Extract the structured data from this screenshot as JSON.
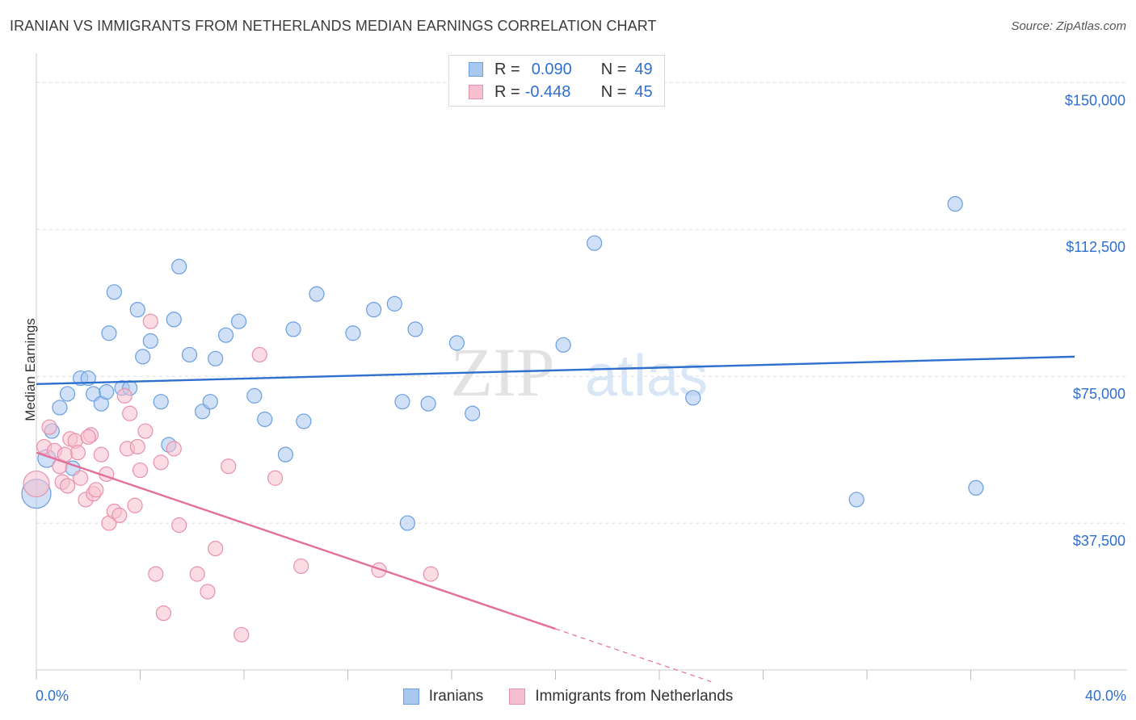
{
  "title": "IRANIAN VS IMMIGRANTS FROM NETHERLANDS MEDIAN EARNINGS CORRELATION CHART",
  "source": "Source: ZipAtlas.com",
  "watermark": {
    "part1": "ZIP",
    "part2": "atlas"
  },
  "legend": [
    {
      "r_label": "R =",
      "r_value": "0.090",
      "n_label": "N =",
      "n_value": "49",
      "color": "#a9c8f0",
      "border": "#6a9ee0"
    },
    {
      "r_label": "R =",
      "r_value": "-0.448",
      "n_label": "N =",
      "n_value": "45",
      "color": "#f7c0d0",
      "border": "#e890aa"
    }
  ],
  "bottom_legend": [
    "Iranians",
    "Immigrants from Netherlands"
  ],
  "x_axis": {
    "min_label": "0.0%",
    "max_label": "40.0%"
  },
  "chart_data": {
    "type": "scatter",
    "xlabel": "",
    "ylabel": "Median Earnings",
    "xlim": [
      0,
      40
    ],
    "ylim": [
      0,
      155000
    ],
    "y_ticks": [
      {
        "value": 37500,
        "label": "$37,500"
      },
      {
        "value": 75000,
        "label": "$75,000"
      },
      {
        "value": 112500,
        "label": "$112,500"
      },
      {
        "value": 150000,
        "label": "$150,000"
      }
    ],
    "series": [
      {
        "name": "Iranians",
        "color": "#6a9ee0",
        "fill": "#a9c8f0",
        "trend": {
          "x0": 0,
          "y0": 73000,
          "x1": 40,
          "y1": 80000,
          "solid_to": 40
        },
        "points": [
          [
            0.0,
            45000,
            18
          ],
          [
            0.4,
            54000,
            11
          ],
          [
            0.6,
            61000,
            9
          ],
          [
            0.9,
            67000,
            9
          ],
          [
            1.2,
            70500,
            9
          ],
          [
            1.7,
            74500,
            9
          ],
          [
            2.0,
            74500,
            9
          ],
          [
            1.4,
            51500,
            9
          ],
          [
            2.2,
            70500,
            9
          ],
          [
            2.5,
            68000,
            9
          ],
          [
            2.8,
            86000,
            9
          ],
          [
            3.0,
            96500,
            9
          ],
          [
            3.3,
            72000,
            9
          ],
          [
            3.6,
            72000,
            9
          ],
          [
            3.9,
            92000,
            9
          ],
          [
            4.1,
            80000,
            9
          ],
          [
            4.4,
            84000,
            9
          ],
          [
            4.8,
            68500,
            9
          ],
          [
            5.1,
            57500,
            9
          ],
          [
            5.3,
            89500,
            9
          ],
          [
            5.5,
            103000,
            9
          ],
          [
            5.9,
            80500,
            9
          ],
          [
            6.4,
            66000,
            9
          ],
          [
            6.7,
            68500,
            9
          ],
          [
            6.9,
            79500,
            9
          ],
          [
            7.3,
            85500,
            9
          ],
          [
            7.8,
            89000,
            9
          ],
          [
            8.4,
            70000,
            9
          ],
          [
            8.8,
            64000,
            9
          ],
          [
            9.6,
            55000,
            9
          ],
          [
            9.9,
            87000,
            9
          ],
          [
            10.3,
            63500,
            9
          ],
          [
            10.8,
            96000,
            9
          ],
          [
            12.2,
            86000,
            9
          ],
          [
            13.0,
            92000,
            9
          ],
          [
            13.8,
            93500,
            9
          ],
          [
            14.1,
            68500,
            9
          ],
          [
            14.3,
            37500,
            9
          ],
          [
            14.6,
            87000,
            9
          ],
          [
            15.1,
            68000,
            9
          ],
          [
            16.2,
            83500,
            9
          ],
          [
            16.8,
            65500,
            9
          ],
          [
            20.3,
            83000,
            9
          ],
          [
            21.5,
            109000,
            9
          ],
          [
            25.3,
            69500,
            9
          ],
          [
            31.6,
            43500,
            9
          ],
          [
            35.4,
            119000,
            9
          ],
          [
            36.2,
            46500,
            9
          ],
          [
            2.7,
            71000,
            9
          ]
        ]
      },
      {
        "name": "Immigrants from Netherlands",
        "color": "#e890aa",
        "fill": "#f7c0d0",
        "trend": {
          "x0": 0,
          "y0": 55500,
          "x1": 26,
          "y1": -3000,
          "solid_to": 20
        },
        "points": [
          [
            0.0,
            47500,
            16
          ],
          [
            0.3,
            57000,
            9
          ],
          [
            0.5,
            62000,
            9
          ],
          [
            0.7,
            56000,
            9
          ],
          [
            0.9,
            52000,
            9
          ],
          [
            1.0,
            48000,
            9
          ],
          [
            1.2,
            47000,
            9
          ],
          [
            1.3,
            59000,
            9
          ],
          [
            1.5,
            58500,
            9
          ],
          [
            1.6,
            55500,
            9
          ],
          [
            1.7,
            49000,
            9
          ],
          [
            1.9,
            43500,
            9
          ],
          [
            2.1,
            60000,
            9
          ],
          [
            2.2,
            45000,
            9
          ],
          [
            2.3,
            46000,
            9
          ],
          [
            2.5,
            55000,
            9
          ],
          [
            2.7,
            50000,
            9
          ],
          [
            2.8,
            37500,
            9
          ],
          [
            3.0,
            40500,
            9
          ],
          [
            3.2,
            39500,
            9
          ],
          [
            3.4,
            70000,
            9
          ],
          [
            3.5,
            56500,
            9
          ],
          [
            3.6,
            65500,
            9
          ],
          [
            3.8,
            42000,
            9
          ],
          [
            4.0,
            51000,
            9
          ],
          [
            4.2,
            61000,
            9
          ],
          [
            4.4,
            89000,
            9
          ],
          [
            4.6,
            24500,
            9
          ],
          [
            4.8,
            53000,
            9
          ],
          [
            4.9,
            14500,
            9
          ],
          [
            5.3,
            56500,
            9
          ],
          [
            5.5,
            37000,
            9
          ],
          [
            6.2,
            24500,
            9
          ],
          [
            6.6,
            20000,
            9
          ],
          [
            6.9,
            31000,
            9
          ],
          [
            7.4,
            52000,
            9
          ],
          [
            7.9,
            9000,
            9
          ],
          [
            8.6,
            80500,
            9
          ],
          [
            9.2,
            49000,
            9
          ],
          [
            10.2,
            26500,
            9
          ],
          [
            13.2,
            25500,
            9
          ],
          [
            15.2,
            24500,
            9
          ],
          [
            3.9,
            57000,
            9
          ],
          [
            1.1,
            55000,
            9
          ],
          [
            2.0,
            59500,
            9
          ]
        ]
      }
    ],
    "grid": true,
    "legend_position": "top-center"
  }
}
